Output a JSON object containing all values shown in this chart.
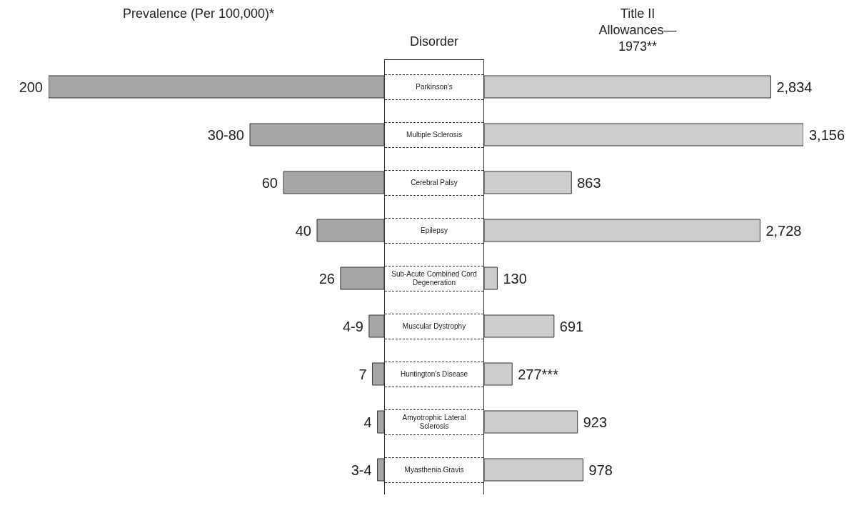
{
  "chart_data": [
    {
      "type": "bar",
      "orientation": "horizontal",
      "title": "Prevalence (Per 100,000)*",
      "ylabel": "Disorder",
      "categories": [
        "Parkinson's",
        "Multiple Sclerosis",
        "Cerebral Palsy",
        "Epilepsy",
        "Sub-Acute Combined Cord Degeneration",
        "Muscular Dystrophy",
        "Huntington's Disease",
        "Amyotrophic Lateral Sclerosis",
        "Myasthenia Gravis"
      ],
      "values": [
        200,
        80,
        60,
        40,
        26,
        9,
        7,
        4,
        4
      ],
      "value_labels": [
        "200",
        "30-80",
        "60",
        "40",
        "26",
        "4-9",
        "7",
        "4",
        "3-4"
      ],
      "color": "#a6a6a6"
    },
    {
      "type": "bar",
      "orientation": "horizontal",
      "title": "Title II Allowances—1973**",
      "values": [
        2834,
        3156,
        863,
        2728,
        130,
        691,
        277,
        923,
        978
      ],
      "value_labels": [
        "2,834",
        "3,156",
        "863",
        "2,728",
        "130",
        "691",
        "277***",
        "923",
        "978"
      ],
      "color": "#cdcdcd"
    }
  ]
}
